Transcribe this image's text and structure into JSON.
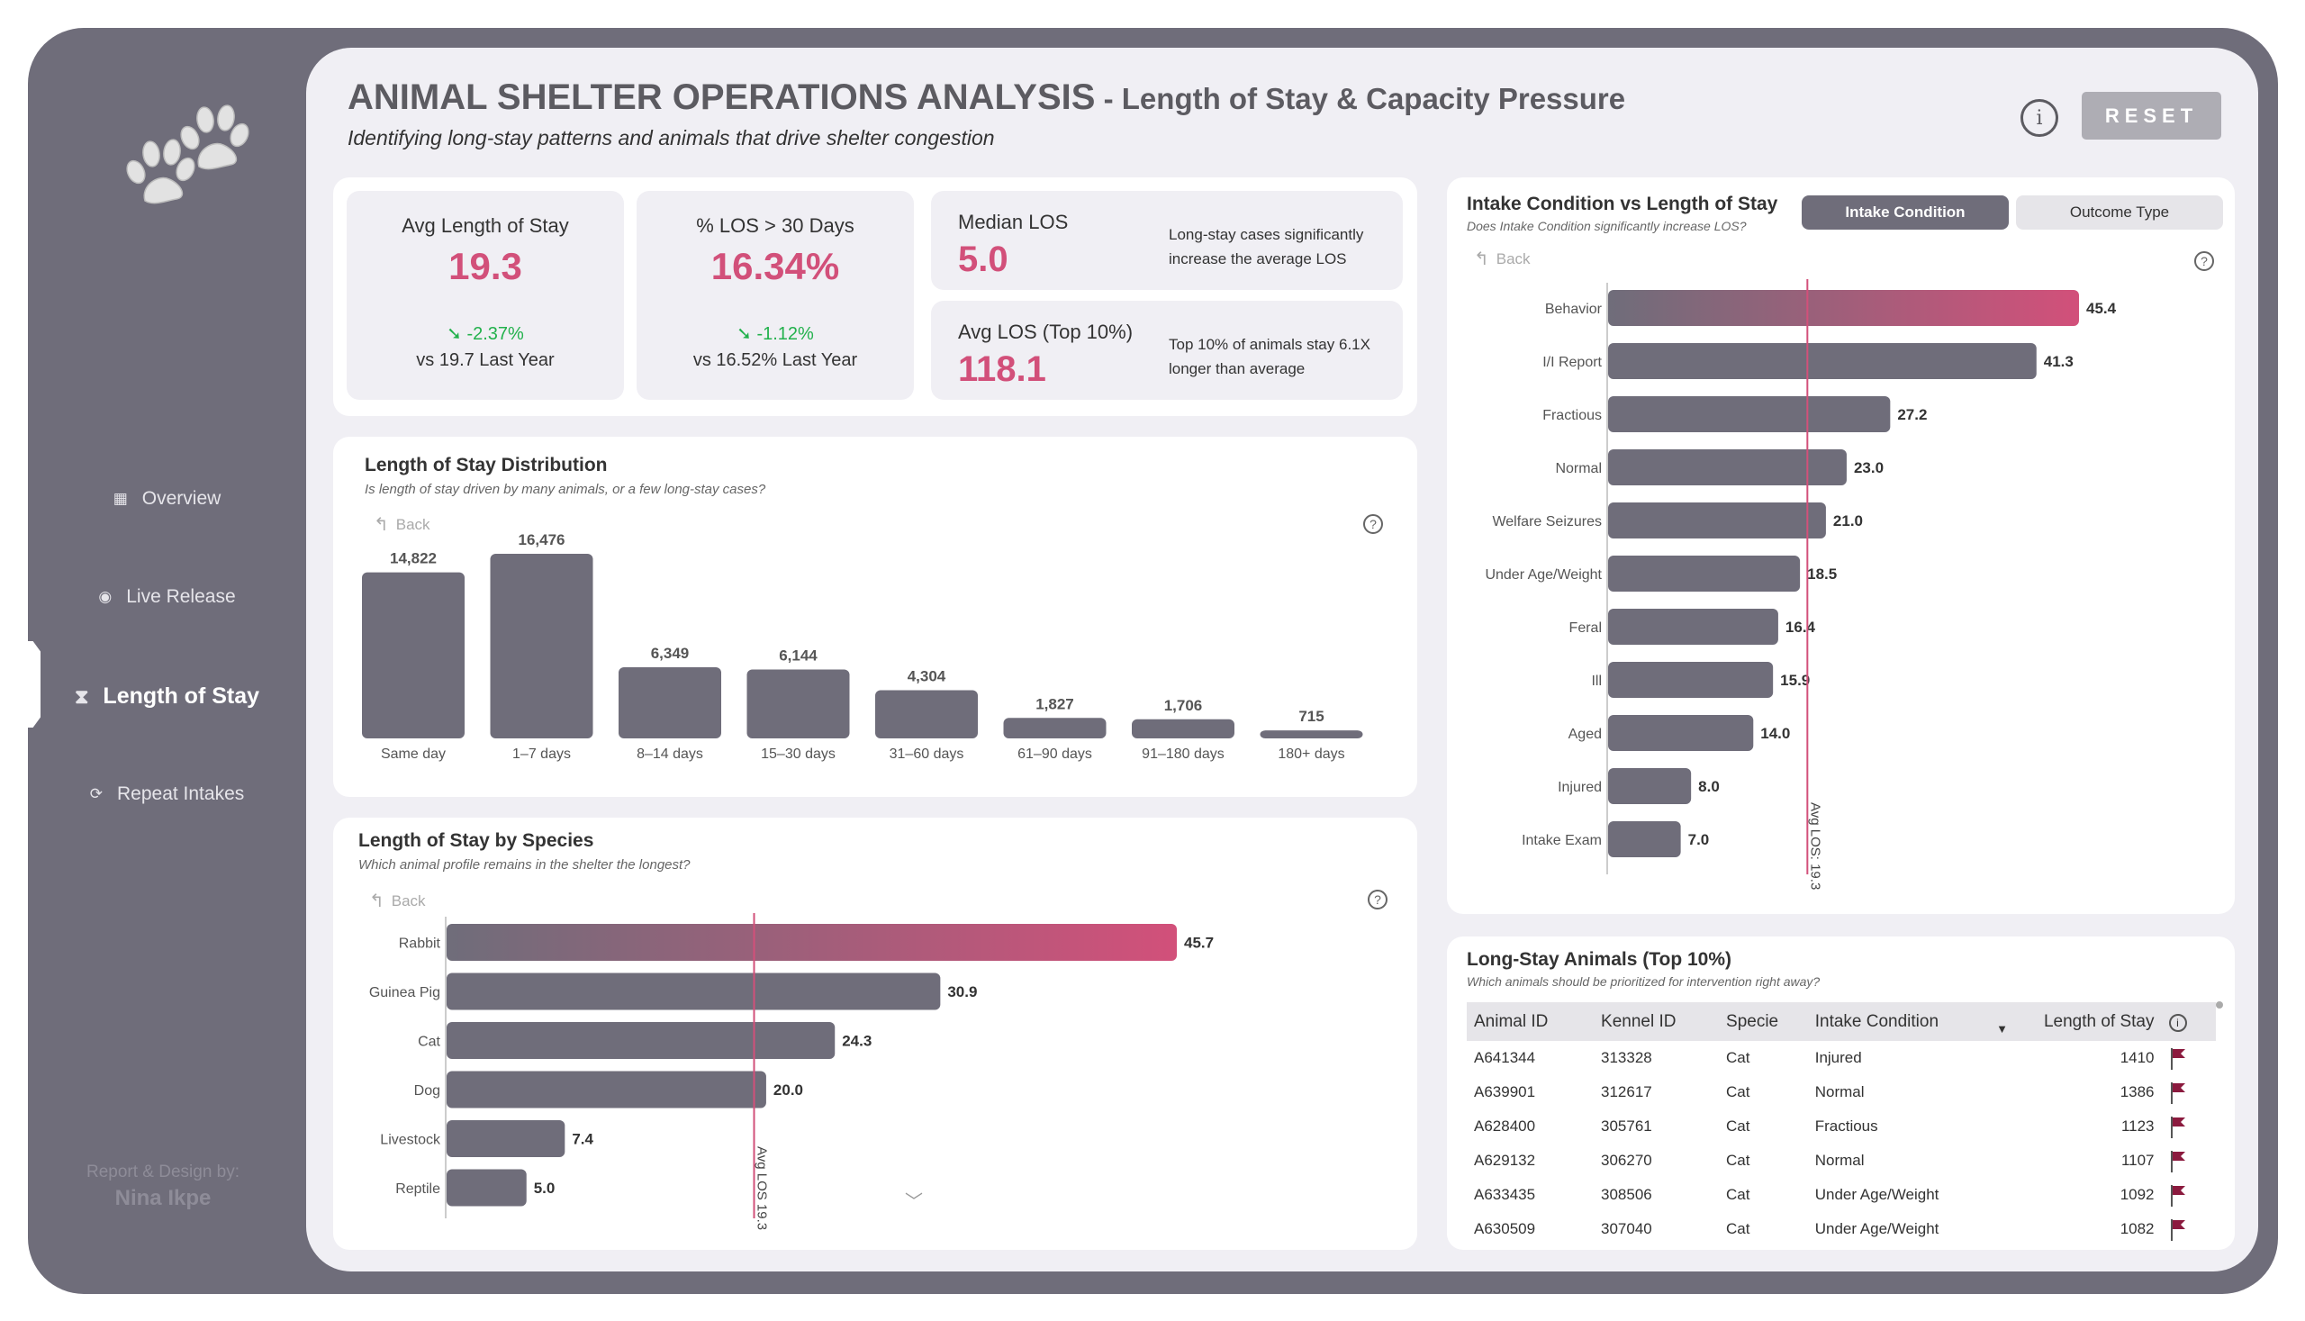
{
  "sidebar": {
    "logo_icon": "paw-prints-icon",
    "items": [
      {
        "label": "Overview",
        "icon": "grid-icon",
        "glyph": "▦",
        "active": false
      },
      {
        "label": "Live Release",
        "icon": "radio-icon",
        "glyph": "◉",
        "active": false
      },
      {
        "label": "Length of Stay",
        "icon": "hourglass-icon",
        "glyph": "⧗",
        "active": true
      },
      {
        "label": "Repeat Intakes",
        "icon": "refresh-icon",
        "glyph": "⟳",
        "active": false
      }
    ],
    "credit_label": "Report & Design by:",
    "credit_name": "Nina Ikpe"
  },
  "header": {
    "title": "ANIMAL SHELTER OPERATIONS ANALYSIS",
    "title_suffix": " - Length of Stay & Capacity Pressure",
    "subtitle": "Identifying long-stay patterns and animals that drive shelter congestion",
    "info_glyph": "i",
    "reset_label": "RESET"
  },
  "kpis": {
    "avg_los": {
      "label": "Avg Length of Stay",
      "value": "19.3",
      "delta": "-2.37%",
      "delta_glyph": "➘",
      "vs": "vs 19.7 Last Year"
    },
    "pct_over_30": {
      "label": "% LOS > 30 Days",
      "value": "16.34%",
      "delta": "-1.12%",
      "delta_glyph": "➘",
      "vs": "vs 16.52% Last Year"
    },
    "median": {
      "label": "Median LOS",
      "value": "5.0",
      "note": "Long-stay cases significantly increase the average LOS"
    },
    "top10": {
      "label": "Avg LOS (Top 10%)",
      "value": "118.1",
      "note": "Top 10% of animals stay 6.1X longer than average"
    }
  },
  "colors": {
    "accent": "#d2507a",
    "bar": "#6f6d7a",
    "positive": "#22b14c",
    "flag": "#8b1a3e"
  },
  "common": {
    "back_label": "Back",
    "back_glyph": "↰",
    "help_glyph": "?",
    "chevron_glyph": "﹀"
  },
  "distribution": {
    "title": "Length of Stay Distribution",
    "subtitle": "Is length of stay driven by many animals, or a few  long-stay cases?"
  },
  "species": {
    "title": "Length of Stay by Species",
    "subtitle": "Which animal profile remains in the shelter the longest?"
  },
  "intake": {
    "title": "Intake Condition vs Length of Stay",
    "subtitle": "Does Intake Condition significantly increase LOS?",
    "toggle_on": "Intake Condition",
    "toggle_off": "Outcome Type"
  },
  "table": {
    "title": "Long-Stay Animals (Top 10%)",
    "subtitle": "Which animals should be prioritized for intervention right away?",
    "columns": [
      "Animal ID",
      "Kennel ID",
      "Specie",
      "Intake Condition",
      "Length of Stay"
    ],
    "sort_glyph": "▼",
    "info_glyph": "i",
    "rows": [
      [
        "A641344",
        "313328",
        "Cat",
        "Injured",
        "1410"
      ],
      [
        "A639901",
        "312617",
        "Cat",
        "Normal",
        "1386"
      ],
      [
        "A628400",
        "305761",
        "Cat",
        "Fractious",
        "1123"
      ],
      [
        "A629132",
        "306270",
        "Cat",
        "Normal",
        "1107"
      ],
      [
        "A633435",
        "308506",
        "Cat",
        "Under Age/Weight",
        "1092"
      ],
      [
        "A630509",
        "307040",
        "Cat",
        "Under Age/Weight",
        "1082"
      ]
    ]
  },
  "chart_data": [
    {
      "id": "distribution",
      "type": "bar",
      "title": "Length of Stay Distribution",
      "categories": [
        "Same day",
        "1–7 days",
        "8–14 days",
        "15–30 days",
        "31–60 days",
        "61–90 days",
        "91–180 days",
        "180+ days"
      ],
      "values": [
        14822,
        16476,
        6349,
        6144,
        4304,
        1827,
        1706,
        715
      ],
      "labels": [
        "14,822",
        "16,476",
        "6,349",
        "6,144",
        "4,304",
        "1,827",
        "1,706",
        "715"
      ],
      "xlabel": "",
      "ylabel": "",
      "ylim": [
        0,
        16476
      ],
      "grid": false
    },
    {
      "id": "species",
      "type": "bar",
      "orientation": "horizontal",
      "title": "Length of Stay by Species",
      "categories": [
        "Rabbit",
        "Guinea Pig",
        "Cat",
        "Dog",
        "Livestock",
        "Reptile"
      ],
      "values": [
        45.7,
        30.9,
        24.3,
        20.0,
        7.4,
        5.0
      ],
      "highlight": "Rabbit",
      "reference_line": {
        "value": 19.3,
        "label": "Avg LOS 19.3"
      },
      "xlim": [
        0,
        45.7
      ],
      "grid": false
    },
    {
      "id": "intake",
      "type": "bar",
      "orientation": "horizontal",
      "title": "Intake Condition vs Length of Stay",
      "categories": [
        "Behavior",
        "I/I Report",
        "Fractious",
        "Normal",
        "Welfare Seizures",
        "Under Age/Weight",
        "Feral",
        "Ill",
        "Aged",
        "Injured",
        "Intake Exam"
      ],
      "values": [
        45.4,
        41.3,
        27.2,
        23.0,
        21.0,
        18.5,
        16.4,
        15.9,
        14.0,
        8.0,
        7.0
      ],
      "highlight": "Behavior",
      "reference_line": {
        "value": 19.3,
        "label": "Avg LOS: 19.3"
      },
      "xlim": [
        0,
        45.4
      ],
      "grid": false
    }
  ]
}
